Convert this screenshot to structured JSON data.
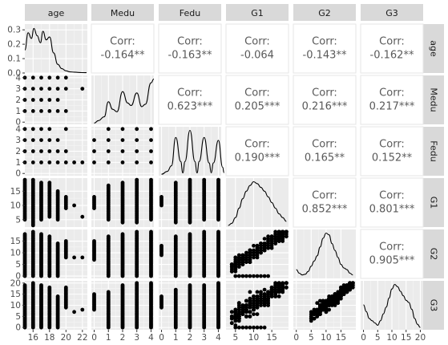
{
  "chart_data": {
    "type": "scatter",
    "title": "",
    "variables": [
      "age",
      "Medu",
      "Fedu",
      "G1",
      "G2",
      "G3"
    ],
    "grid": true,
    "axes": {
      "age": {
        "lim": [
          15,
          22.6
        ],
        "ticks": [
          16,
          18,
          20,
          22
        ]
      },
      "Medu": {
        "lim": [
          -0.2,
          4.2
        ],
        "ticks": [
          0,
          1,
          2,
          3,
          4
        ]
      },
      "Fedu": {
        "lim": [
          -0.2,
          4.2
        ],
        "ticks": [
          0,
          1,
          2,
          3,
          4
        ]
      },
      "G1": {
        "lim": [
          2.4,
          19.6
        ],
        "ticks": [
          5,
          10,
          15
        ]
      },
      "G2": {
        "lim": [
          -1,
          20
        ],
        "ticks": [
          0,
          5,
          10,
          15
        ]
      },
      "G3": {
        "lim": [
          -1,
          21
        ],
        "ticks": [
          0,
          5,
          10,
          15,
          20
        ]
      }
    },
    "density_axis": {
      "variable": "age",
      "lim": [
        0,
        0.34
      ],
      "ticks": [
        "0.0",
        "0.1",
        "0.2",
        "0.3"
      ]
    },
    "correlations": [
      {
        "row": "age",
        "col": "Medu",
        "label": "Corr:",
        "value": "-0.164**"
      },
      {
        "row": "age",
        "col": "Fedu",
        "label": "Corr:",
        "value": "-0.163**"
      },
      {
        "row": "age",
        "col": "G1",
        "label": "Corr:",
        "value": "-0.064"
      },
      {
        "row": "age",
        "col": "G2",
        "label": "Corr:",
        "value": "-0.143**"
      },
      {
        "row": "age",
        "col": "G3",
        "label": "Corr:",
        "value": "-0.162**"
      },
      {
        "row": "Medu",
        "col": "Fedu",
        "label": "Corr:",
        "value": "0.623***"
      },
      {
        "row": "Medu",
        "col": "G1",
        "label": "Corr:",
        "value": "0.205***"
      },
      {
        "row": "Medu",
        "col": "G2",
        "label": "Corr:",
        "value": "0.216***"
      },
      {
        "row": "Medu",
        "col": "G3",
        "label": "Corr:",
        "value": "0.217***"
      },
      {
        "row": "Fedu",
        "col": "G1",
        "label": "Corr:",
        "value": "0.190***"
      },
      {
        "row": "Fedu",
        "col": "G2",
        "label": "Corr:",
        "value": "0.165**"
      },
      {
        "row": "Fedu",
        "col": "G3",
        "label": "Corr:",
        "value": "0.152**"
      },
      {
        "row": "G1",
        "col": "G2",
        "label": "Corr:",
        "value": "0.852***"
      },
      {
        "row": "G1",
        "col": "G3",
        "label": "Corr:",
        "value": "0.801***"
      },
      {
        "row": "G2",
        "col": "G3",
        "label": "Corr:",
        "value": "0.905***"
      }
    ],
    "densities": {
      "age": [
        [
          15,
          0.16
        ],
        [
          15.4,
          0.28
        ],
        [
          15.8,
          0.24
        ],
        [
          16.1,
          0.31
        ],
        [
          16.5,
          0.26
        ],
        [
          16.9,
          0.21
        ],
        [
          17.2,
          0.29
        ],
        [
          17.6,
          0.23
        ],
        [
          18,
          0.25
        ],
        [
          18.5,
          0.14
        ],
        [
          19,
          0.06
        ],
        [
          19.5,
          0.03
        ],
        [
          20,
          0.015
        ],
        [
          20.5,
          0.008
        ],
        [
          21,
          0.006
        ],
        [
          21.5,
          0.004
        ],
        [
          22,
          0.003
        ],
        [
          22.5,
          0.002
        ]
      ],
      "Medu": [
        [
          0,
          0.01
        ],
        [
          0.3,
          0.03
        ],
        [
          0.7,
          0.06
        ],
        [
          1,
          0.18
        ],
        [
          1.3,
          0.12
        ],
        [
          1.6,
          0.1
        ],
        [
          2,
          0.26
        ],
        [
          2.35,
          0.17
        ],
        [
          2.6,
          0.15
        ],
        [
          3,
          0.25
        ],
        [
          3.35,
          0.14
        ],
        [
          3.6,
          0.16
        ],
        [
          4,
          0.33
        ],
        [
          4.2,
          0.36
        ]
      ],
      "Fedu": [
        [
          0,
          0.01
        ],
        [
          0.4,
          0.03
        ],
        [
          0.7,
          0.07
        ],
        [
          1,
          0.27
        ],
        [
          1.35,
          0.1
        ],
        [
          1.5,
          0.02
        ],
        [
          1.65,
          0.1
        ],
        [
          2,
          0.32
        ],
        [
          2.35,
          0.1
        ],
        [
          2.5,
          0.02
        ],
        [
          2.65,
          0.1
        ],
        [
          3,
          0.27
        ],
        [
          3.35,
          0.09
        ],
        [
          3.5,
          0.02
        ],
        [
          3.65,
          0.09
        ],
        [
          4,
          0.25
        ],
        [
          4.3,
          0.06
        ],
        [
          4.4,
          0.02
        ]
      ],
      "G1": [
        [
          3,
          0.004
        ],
        [
          4,
          0.01
        ],
        [
          5,
          0.025
        ],
        [
          6,
          0.05
        ],
        [
          7,
          0.075
        ],
        [
          8,
          0.095
        ],
        [
          9,
          0.11
        ],
        [
          10,
          0.12
        ],
        [
          11,
          0.115
        ],
        [
          12,
          0.105
        ],
        [
          13,
          0.095
        ],
        [
          14,
          0.08
        ],
        [
          15,
          0.065
        ],
        [
          16,
          0.05
        ],
        [
          17,
          0.035
        ],
        [
          18,
          0.025
        ],
        [
          19,
          0.015
        ]
      ],
      "G2": [
        [
          0,
          0.025
        ],
        [
          1,
          0.015
        ],
        [
          2,
          0.01
        ],
        [
          3,
          0.012
        ],
        [
          4,
          0.02
        ],
        [
          5,
          0.035
        ],
        [
          6,
          0.05
        ],
        [
          7,
          0.065
        ],
        [
          8,
          0.09
        ],
        [
          9,
          0.115
        ],
        [
          10,
          0.13
        ],
        [
          11,
          0.125
        ],
        [
          12,
          0.1
        ],
        [
          13,
          0.08
        ],
        [
          14,
          0.06
        ],
        [
          15,
          0.04
        ],
        [
          16,
          0.03
        ],
        [
          17,
          0.025
        ],
        [
          18,
          0.015
        ],
        [
          19,
          0.01
        ]
      ],
      "G3": [
        [
          0,
          0.055
        ],
        [
          1,
          0.04
        ],
        [
          2,
          0.025
        ],
        [
          3,
          0.02
        ],
        [
          4,
          0.015
        ],
        [
          5,
          0.01
        ],
        [
          6,
          0.02
        ],
        [
          7,
          0.035
        ],
        [
          8,
          0.05
        ],
        [
          9,
          0.07
        ],
        [
          10,
          0.09
        ],
        [
          11,
          0.1
        ],
        [
          12,
          0.095
        ],
        [
          13,
          0.085
        ],
        [
          14,
          0.075
        ],
        [
          15,
          0.065
        ],
        [
          16,
          0.06
        ],
        [
          17,
          0.045
        ],
        [
          18,
          0.025
        ],
        [
          19,
          0.012
        ],
        [
          20,
          0.005
        ]
      ]
    },
    "scatter": {
      "Medu_vs_age": [
        [
          15,
          1
        ],
        [
          15,
          2
        ],
        [
          15,
          3
        ],
        [
          15,
          4
        ],
        [
          16,
          1
        ],
        [
          16,
          2
        ],
        [
          16,
          3
        ],
        [
          16,
          4
        ],
        [
          17,
          1
        ],
        [
          17,
          2
        ],
        [
          17,
          3
        ],
        [
          17,
          4
        ],
        [
          18,
          1
        ],
        [
          18,
          2
        ],
        [
          18,
          3
        ],
        [
          18,
          4
        ],
        [
          19,
          1
        ],
        [
          19,
          2
        ],
        [
          19,
          3
        ],
        [
          19,
          4
        ],
        [
          20,
          1
        ],
        [
          20,
          3
        ],
        [
          20,
          4
        ],
        [
          22,
          3
        ]
      ],
      "Fedu_vs_age": [
        [
          15,
          1
        ],
        [
          15,
          2
        ],
        [
          15,
          3
        ],
        [
          15,
          4
        ],
        [
          16,
          1
        ],
        [
          16,
          2
        ],
        [
          16,
          3
        ],
        [
          16,
          4
        ],
        [
          17,
          1
        ],
        [
          17,
          2
        ],
        [
          17,
          3
        ],
        [
          17,
          4
        ],
        [
          18,
          1
        ],
        [
          18,
          2
        ],
        [
          18,
          3
        ],
        [
          18,
          4
        ],
        [
          19,
          1
        ],
        [
          19,
          2
        ],
        [
          19,
          3
        ],
        [
          20,
          1
        ],
        [
          20,
          2
        ],
        [
          20,
          4
        ],
        [
          21,
          1
        ],
        [
          22,
          1
        ]
      ],
      "Fedu_vs_Medu": [
        [
          0,
          1
        ],
        [
          0,
          2
        ],
        [
          0,
          3
        ],
        [
          1,
          1
        ],
        [
          1,
          2
        ],
        [
          1,
          3
        ],
        [
          1,
          4
        ],
        [
          2,
          1
        ],
        [
          2,
          2
        ],
        [
          2,
          3
        ],
        [
          2,
          4
        ],
        [
          3,
          1
        ],
        [
          3,
          2
        ],
        [
          3,
          3
        ],
        [
          3,
          4
        ],
        [
          4,
          1
        ],
        [
          4,
          2
        ],
        [
          4,
          3
        ],
        [
          4,
          4
        ]
      ]
    },
    "discrete_ranges": {
      "G1": {
        "age": {
          "15": [
            5,
            19
          ],
          "16": [
            3,
            19
          ],
          "17": [
            5,
            18
          ],
          "18": [
            6,
            18
          ],
          "19": [
            5,
            15
          ],
          "20": [
            9,
            13
          ],
          "21": [
            10,
            10
          ],
          "22": [
            6,
            6
          ]
        },
        "Medu": {
          "0": [
            9,
            13
          ],
          "1": [
            5,
            17
          ],
          "2": [
            4,
            18
          ],
          "3": [
            4,
            19
          ],
          "4": [
            5,
            19
          ]
        },
        "Fedu": {
          "0": [
            10,
            13
          ],
          "1": [
            4,
            18
          ],
          "2": [
            4,
            19
          ],
          "3": [
            5,
            19
          ],
          "4": [
            5,
            19
          ]
        }
      },
      "G2": {
        "age": {
          "15": [
            0,
            18
          ],
          "16": [
            0,
            19
          ],
          "17": [
            0,
            18
          ],
          "18": [
            0,
            17
          ],
          "19": [
            0,
            14
          ],
          "20": [
            8,
            15
          ],
          "21": [
            8,
            8
          ],
          "22": [
            8,
            8
          ]
        },
        "Medu": {
          "0": [
            7,
            15
          ],
          "1": [
            0,
            17
          ],
          "2": [
            0,
            18
          ],
          "3": [
            0,
            19
          ],
          "4": [
            0,
            19
          ]
        },
        "Fedu": {
          "0": [
            9,
            13
          ],
          "1": [
            0,
            17
          ],
          "2": [
            0,
            18
          ],
          "3": [
            0,
            19
          ],
          "4": [
            0,
            19
          ]
        }
      },
      "G3": {
        "age": {
          "15": [
            0,
            19
          ],
          "16": [
            0,
            20
          ],
          "17": [
            0,
            19
          ],
          "18": [
            0,
            18
          ],
          "19": [
            0,
            14
          ],
          "20": [
            9,
            18
          ],
          "21": [
            7,
            7
          ],
          "22": [
            8,
            8
          ]
        },
        "Medu": {
          "0": [
            8,
            15
          ],
          "1": [
            0,
            16
          ],
          "2": [
            0,
            19
          ],
          "3": [
            0,
            20
          ],
          "4": [
            0,
            20
          ]
        },
        "Fedu": {
          "0": [
            9,
            14
          ],
          "1": [
            0,
            17
          ],
          "2": [
            0,
            19
          ],
          "3": [
            0,
            19
          ],
          "4": [
            0,
            20
          ]
        }
      }
    },
    "continuous_pairs": [
      {
        "x": "G1",
        "y": "G2",
        "slope": 1.0,
        "intercept": 0.0,
        "spread": 1.5,
        "zero_band": [
          5,
          14
        ],
        "x_range": [
          4,
          19
        ],
        "y_lim": [
          0,
          19
        ]
      },
      {
        "x": "G1",
        "y": "G3",
        "slope": 1.05,
        "intercept": -0.2,
        "spread": 2,
        "zero_band": [
          5,
          13
        ],
        "x_range": [
          4,
          19
        ],
        "y_lim": [
          0,
          20
        ]
      },
      {
        "x": "G2",
        "y": "G3",
        "slope": 1.02,
        "intercept": 0.2,
        "spread": 1.2,
        "zero_band": [
          0,
          0
        ],
        "x_range": [
          5,
          19
        ],
        "y_lim": [
          0,
          20
        ]
      }
    ]
  }
}
